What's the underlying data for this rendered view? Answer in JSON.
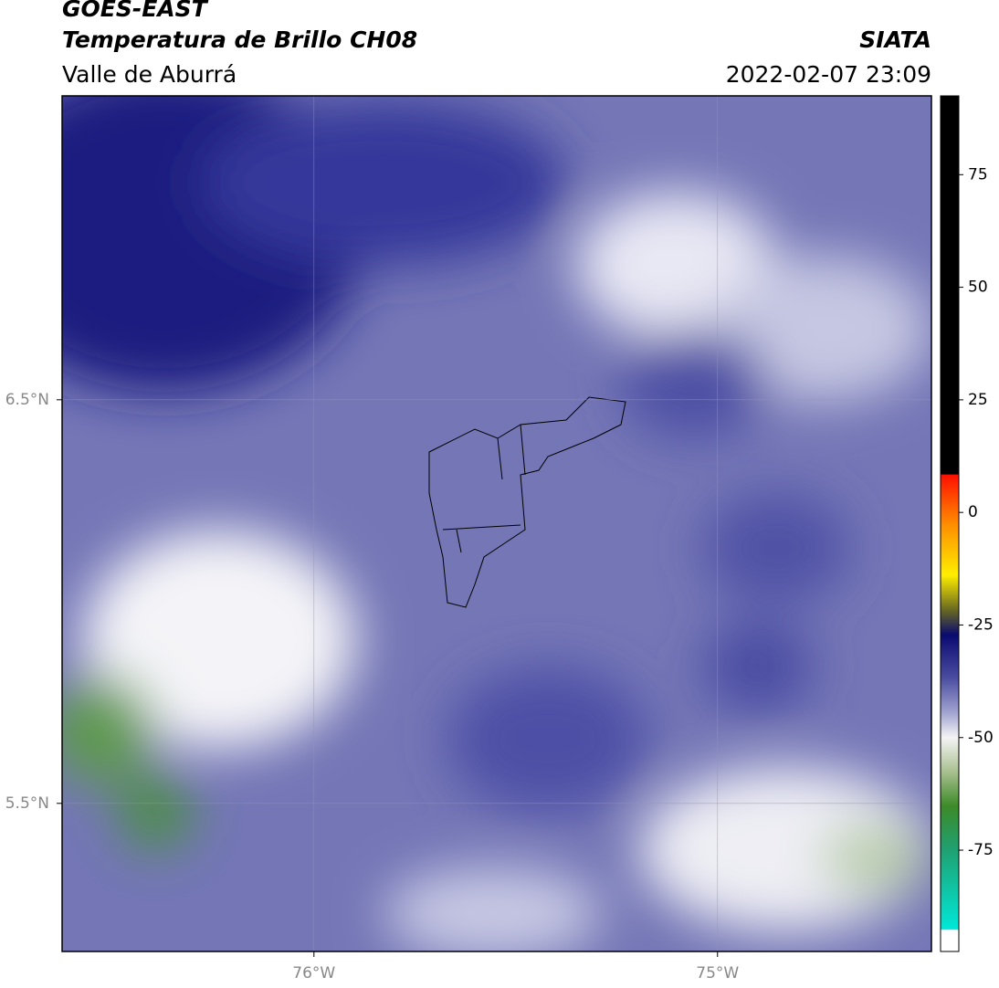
{
  "header": {
    "title": "GOES-EAST",
    "subtitle": "Temperatura de Brillo CH08",
    "region": "Valle de Aburrá",
    "source": "SIATA",
    "datetime": "2022-02-07 23:09"
  },
  "map": {
    "xlim": [
      -76.624,
      -74.47
    ],
    "ylim": [
      5.133,
      7.253
    ],
    "xticks": [
      {
        "value": -76,
        "label": "76°W"
      },
      {
        "value": -75,
        "label": "75°W"
      }
    ],
    "yticks": [
      {
        "value": 6.5,
        "label": "6.5°N"
      },
      {
        "value": 5.5,
        "label": "5.5°N"
      }
    ]
  },
  "colorbar": {
    "lim": [
      -97.5,
      92.5
    ],
    "ticks": [
      75,
      50,
      25,
      0,
      -25,
      -50,
      -75
    ]
  }
}
